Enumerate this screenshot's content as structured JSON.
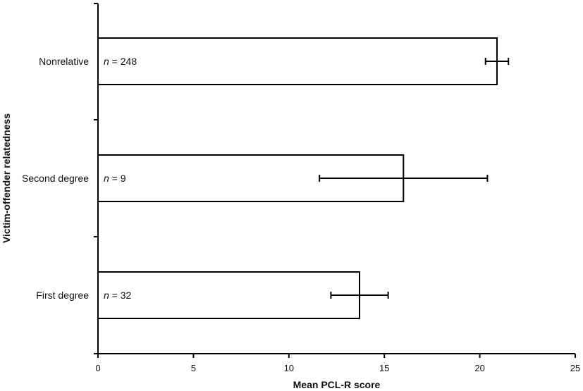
{
  "chart_data": {
    "type": "bar",
    "orientation": "horizontal",
    "categories": [
      "Nonrelative",
      "Second degree",
      "First degree"
    ],
    "values": [
      20.9,
      16.0,
      13.7
    ],
    "error_low": [
      20.3,
      11.6,
      12.2
    ],
    "error_high": [
      21.5,
      20.4,
      15.2
    ],
    "n_prefix": "n",
    "n_values": [
      "= 248",
      "= 9",
      "= 32"
    ],
    "xlabel": "Mean PCL-R score",
    "ylabel": "Victim-offender relatedness",
    "xlim": [
      0,
      25
    ],
    "xticks": [
      0,
      5,
      10,
      15,
      20,
      25
    ],
    "grid": false,
    "bar_fill": "#ffffff",
    "bar_stroke": "#000000"
  }
}
